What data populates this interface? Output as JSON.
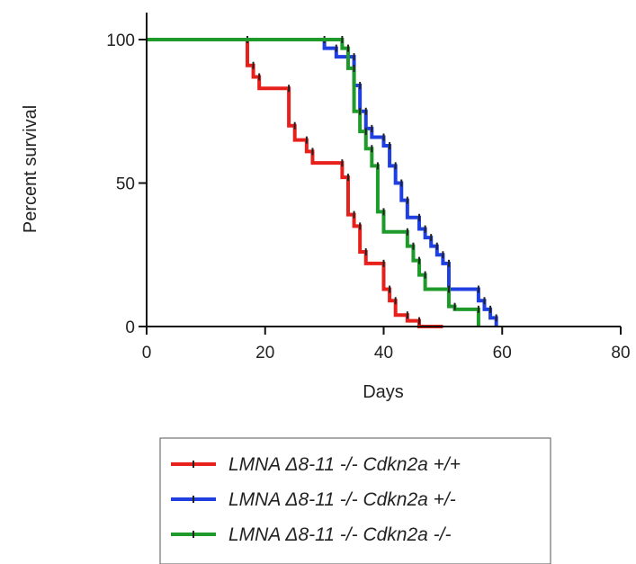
{
  "chart_data": {
    "type": "line",
    "step": true,
    "xlabel": "Days",
    "ylabel": "Percent survival",
    "xlim": [
      0,
      80
    ],
    "ylim": [
      0,
      100
    ],
    "x_ticks": [
      0,
      20,
      40,
      60,
      80
    ],
    "y_ticks": [
      0,
      50,
      100
    ],
    "grid": false,
    "legend_position": "bottom",
    "series": [
      {
        "name": "LMNA Δ8-11 -/- Cdkn2a +/+",
        "color": "#e8201c",
        "x": [
          0,
          17,
          18,
          19,
          24,
          25,
          27,
          28,
          33,
          34,
          35,
          36,
          37,
          40,
          41,
          42,
          43,
          44,
          45,
          46,
          50
        ],
        "y": [
          100,
          91,
          87,
          83,
          70,
          65,
          61,
          57,
          52,
          39,
          35,
          26,
          22,
          13,
          9,
          4,
          4,
          2,
          2,
          0,
          0
        ]
      },
      {
        "name": "LMNA Δ8-11 -/- Cdkn2a +/-",
        "color": "#1f3fe0",
        "x": [
          0,
          30,
          32,
          34,
          35,
          36,
          37,
          38,
          40,
          41,
          42,
          43,
          44,
          46,
          47,
          48,
          49,
          50,
          51,
          56,
          57,
          58,
          59
        ],
        "y": [
          100,
          97,
          94,
          94,
          84,
          75,
          69,
          66,
          63,
          56,
          50,
          44,
          38,
          34,
          31,
          28,
          25,
          22,
          13,
          9,
          6,
          3,
          0
        ]
      },
      {
        "name": "LMNA Δ8-11 -/- Cdkn2a -/-",
        "color": "#1e9a2a",
        "x": [
          0,
          33,
          34,
          35,
          36,
          37,
          38,
          39,
          40,
          43,
          44,
          45,
          46,
          47,
          50,
          51,
          52,
          54,
          55,
          56
        ],
        "y": [
          100,
          97,
          90,
          75,
          68,
          62,
          56,
          40,
          33,
          33,
          28,
          23,
          18,
          13,
          13,
          7,
          6,
          6,
          6,
          0
        ]
      }
    ],
    "legend": {
      "items": [
        {
          "label": "LMNA Δ8-11 -/- Cdkn2a +/+",
          "color": "#e8201c"
        },
        {
          "label": "LMNA Δ8-11 -/- Cdkn2a +/-",
          "color": "#1f3fe0"
        },
        {
          "label": "LMNA Δ8-11 -/- Cdkn2a -/-",
          "color": "#1e9a2a"
        }
      ]
    }
  }
}
